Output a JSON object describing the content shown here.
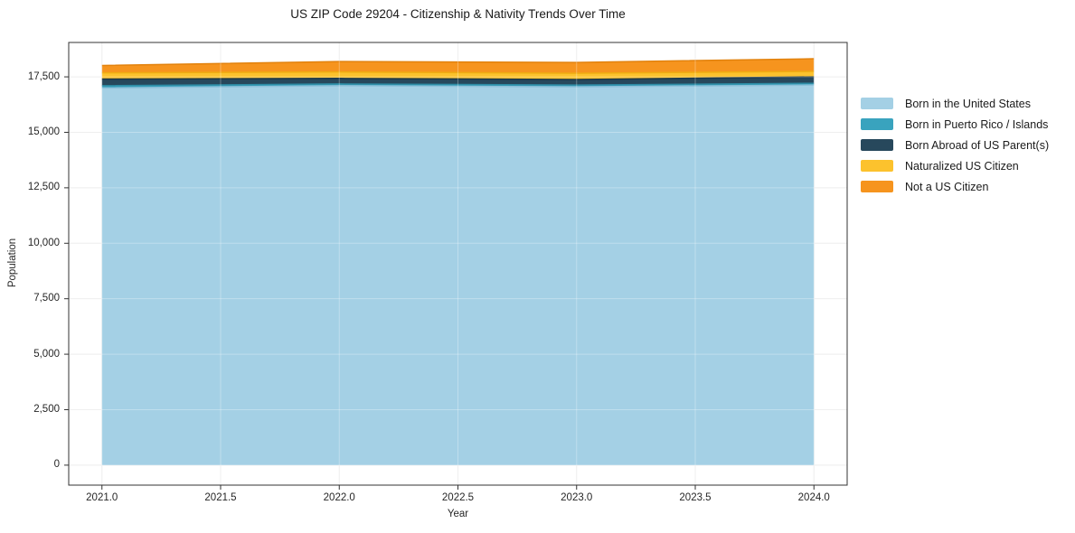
{
  "chart_data": {
    "type": "area",
    "stacked": true,
    "title": "US ZIP Code 29204 - Citizenship & Nativity Trends Over Time",
    "xlabel": "Year",
    "ylabel": "Population",
    "x": [
      2021,
      2022,
      2023,
      2024
    ],
    "series": [
      {
        "name": "Born in the United States",
        "color": "#A4D0E5",
        "edge_color": "#8CBFD8",
        "values": [
          17000,
          17100,
          17050,
          17130
        ]
      },
      {
        "name": "Born in Puerto Rico / Islands",
        "color": "#39A3BE",
        "edge_color": "#2E8CA5",
        "values": [
          100,
          80,
          80,
          80
        ]
      },
      {
        "name": "Born Abroad of US Parent(s)",
        "color": "#27485C",
        "edge_color": "#1C3849",
        "values": [
          300,
          250,
          250,
          290
        ]
      },
      {
        "name": "Naturalized US Citizen",
        "color": "#FCC22D",
        "edge_color": "#EFAD12",
        "values": [
          280,
          290,
          280,
          245
        ]
      },
      {
        "name": "Not a US Citizen",
        "color": "#F6941E",
        "edge_color": "#E2820D",
        "values": [
          330,
          470,
          490,
          570
        ]
      }
    ],
    "totals": [
      18010,
      18190,
      18150,
      18315
    ],
    "xlim": [
      2020.86,
      2024.14
    ],
    "ylim": [
      -900,
      19050
    ],
    "x_ticks": {
      "values": [
        2021,
        2021.5,
        2022,
        2022.5,
        2023,
        2023.5,
        2024
      ],
      "labels": [
        "2021.0",
        "2021.5",
        "2022.0",
        "2022.5",
        "2023.0",
        "2023.5",
        "2024.0"
      ]
    },
    "y_ticks": {
      "values": [
        0,
        2500,
        5000,
        7500,
        10000,
        12500,
        15000,
        17500
      ],
      "labels": [
        "0",
        "2,500",
        "5,000",
        "7,500",
        "10,000",
        "12,500",
        "15,000",
        "17,500"
      ]
    },
    "grid": true,
    "legend_position": "right-outside"
  },
  "colors": {
    "grid": "#E9E9E9",
    "grid_overlay": "rgba(255,255,255,0.3)",
    "spine": "#333333",
    "text": "#262626",
    "background": "#FFFFFF"
  }
}
